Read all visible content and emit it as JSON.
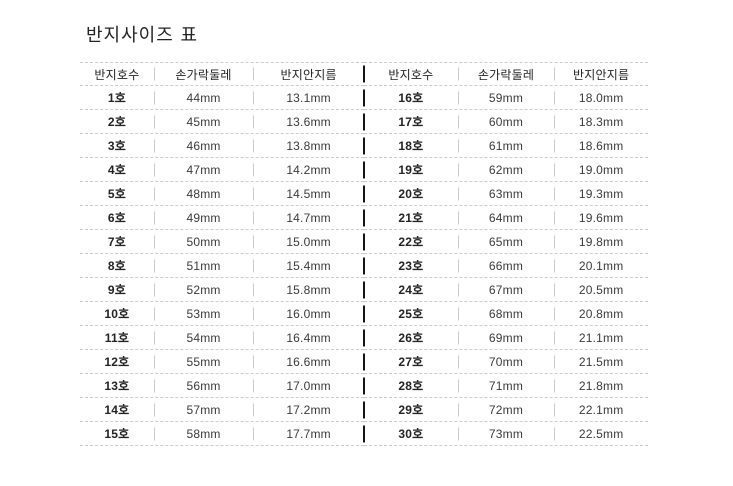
{
  "page": {
    "title": "반지사이즈 표"
  },
  "colors": {
    "background": "#ffffff",
    "text": "#3a3a3a",
    "text_strong": "#232323",
    "line": "#cccccc",
    "divider_dark": "#141414"
  },
  "table": {
    "headers": [
      "반지호수",
      "손가락둘레",
      "반지안지름"
    ],
    "left_rows": [
      [
        "1호",
        "44mm",
        "13.1mm"
      ],
      [
        "2호",
        "45mm",
        "13.6mm"
      ],
      [
        "3호",
        "46mm",
        "13.8mm"
      ],
      [
        "4호",
        "47mm",
        "14.2mm"
      ],
      [
        "5호",
        "48mm",
        "14.5mm"
      ],
      [
        "6호",
        "49mm",
        "14.7mm"
      ],
      [
        "7호",
        "50mm",
        "15.0mm"
      ],
      [
        "8호",
        "51mm",
        "15.4mm"
      ],
      [
        "9호",
        "52mm",
        "15.8mm"
      ],
      [
        "10호",
        "53mm",
        "16.0mm"
      ],
      [
        "11호",
        "54mm",
        "16.4mm"
      ],
      [
        "12호",
        "55mm",
        "16.6mm"
      ],
      [
        "13호",
        "56mm",
        "17.0mm"
      ],
      [
        "14호",
        "57mm",
        "17.2mm"
      ],
      [
        "15호",
        "58mm",
        "17.7mm"
      ]
    ],
    "right_rows": [
      [
        "16호",
        "59mm",
        "18.0mm"
      ],
      [
        "17호",
        "60mm",
        "18.3mm"
      ],
      [
        "18호",
        "61mm",
        "18.6mm"
      ],
      [
        "19호",
        "62mm",
        "19.0mm"
      ],
      [
        "20호",
        "63mm",
        "19.3mm"
      ],
      [
        "21호",
        "64mm",
        "19.6mm"
      ],
      [
        "22호",
        "65mm",
        "19.8mm"
      ],
      [
        "23호",
        "66mm",
        "20.1mm"
      ],
      [
        "24호",
        "67mm",
        "20.5mm"
      ],
      [
        "25호",
        "68mm",
        "20.8mm"
      ],
      [
        "26호",
        "69mm",
        "21.1mm"
      ],
      [
        "27호",
        "70mm",
        "21.5mm"
      ],
      [
        "28호",
        "71mm",
        "21.8mm"
      ],
      [
        "29호",
        "72mm",
        "22.1mm"
      ],
      [
        "30호",
        "73mm",
        "22.5mm"
      ]
    ]
  },
  "chart_data": {
    "type": "table",
    "title": "반지사이즈 표",
    "columns": [
      "반지호수",
      "손가락둘레",
      "반지안지름"
    ],
    "rows": [
      [
        "1호",
        "44mm",
        "13.1mm"
      ],
      [
        "2호",
        "45mm",
        "13.6mm"
      ],
      [
        "3호",
        "46mm",
        "13.8mm"
      ],
      [
        "4호",
        "47mm",
        "14.2mm"
      ],
      [
        "5호",
        "48mm",
        "14.5mm"
      ],
      [
        "6호",
        "49mm",
        "14.7mm"
      ],
      [
        "7호",
        "50mm",
        "15.0mm"
      ],
      [
        "8호",
        "51mm",
        "15.4mm"
      ],
      [
        "9호",
        "52mm",
        "15.8mm"
      ],
      [
        "10호",
        "53mm",
        "16.0mm"
      ],
      [
        "11호",
        "54mm",
        "16.4mm"
      ],
      [
        "12호",
        "55mm",
        "16.6mm"
      ],
      [
        "13호",
        "56mm",
        "17.0mm"
      ],
      [
        "14호",
        "57mm",
        "17.2mm"
      ],
      [
        "15호",
        "58mm",
        "17.7mm"
      ],
      [
        "16호",
        "59mm",
        "18.0mm"
      ],
      [
        "17호",
        "60mm",
        "18.3mm"
      ],
      [
        "18호",
        "61mm",
        "18.6mm"
      ],
      [
        "19호",
        "62mm",
        "19.0mm"
      ],
      [
        "20호",
        "63mm",
        "19.3mm"
      ],
      [
        "21호",
        "64mm",
        "19.6mm"
      ],
      [
        "22호",
        "65mm",
        "19.8mm"
      ],
      [
        "23호",
        "66mm",
        "20.1mm"
      ],
      [
        "24호",
        "67mm",
        "20.5mm"
      ],
      [
        "25호",
        "68mm",
        "20.8mm"
      ],
      [
        "26호",
        "69mm",
        "21.1mm"
      ],
      [
        "27호",
        "70mm",
        "21.5mm"
      ],
      [
        "28호",
        "71mm",
        "21.8mm"
      ],
      [
        "29호",
        "72mm",
        "22.1mm"
      ],
      [
        "30호",
        "73mm",
        "22.5mm"
      ]
    ],
    "layout": {
      "halves": [
        "rows 1-15 left",
        "rows 16-30 right"
      ],
      "grid": "dashed horizontal lines",
      "legend": "none"
    }
  }
}
